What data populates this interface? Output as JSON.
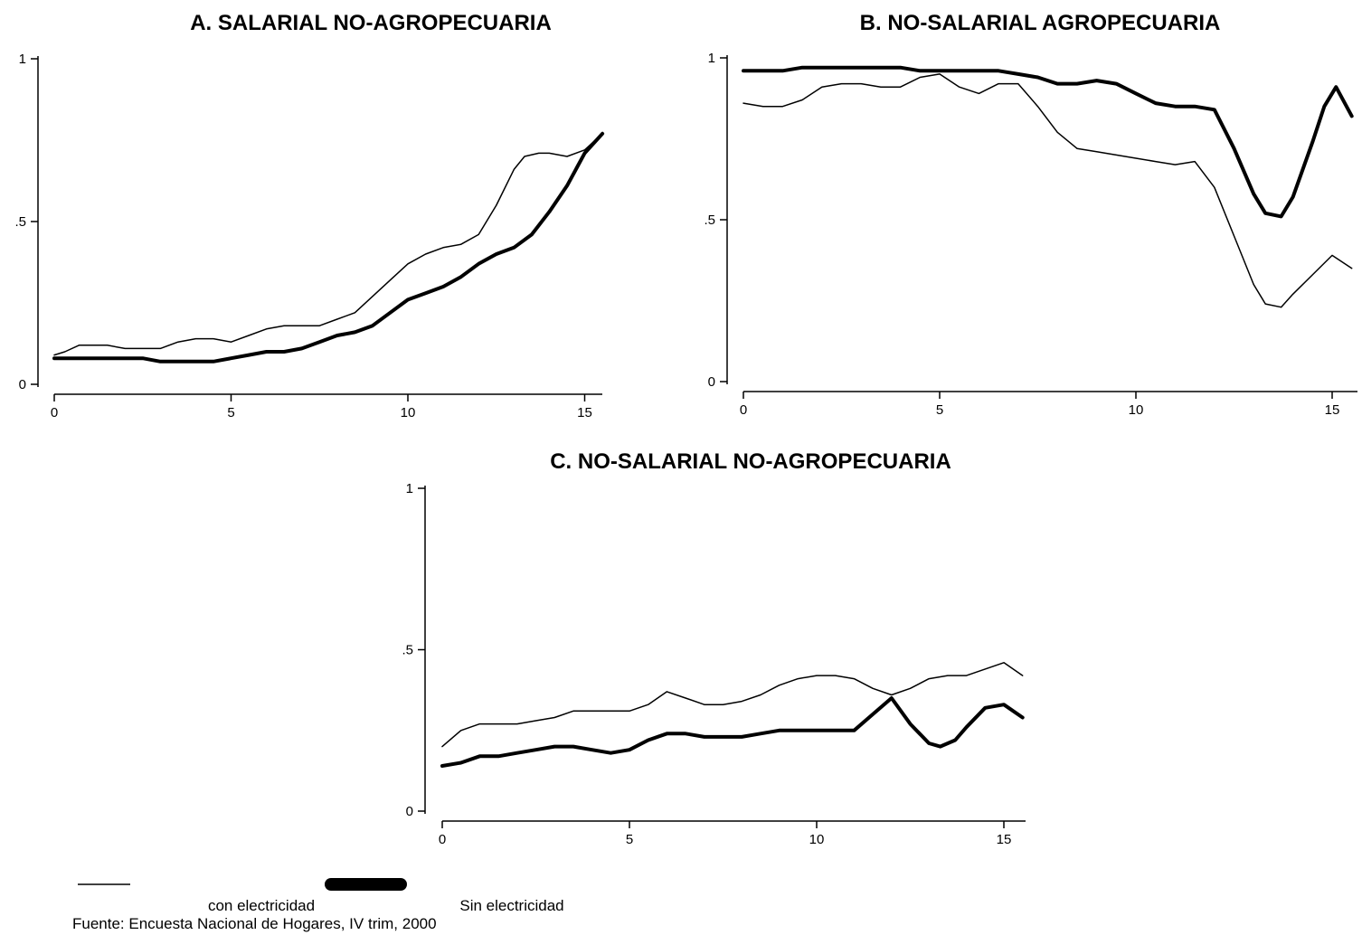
{
  "chart_data": [
    {
      "type": "line",
      "title": "A. SALARIAL NO-AGROPECUARIA",
      "xlabel": "",
      "ylabel": "",
      "xlim": [
        0,
        15.5
      ],
      "ylim": [
        0,
        1
      ],
      "x_ticks": [
        "0",
        "5",
        "10",
        "15"
      ],
      "y_ticks": [
        "0",
        ".5",
        "1"
      ],
      "series": [
        {
          "key": "con",
          "x": [
            0,
            0.3,
            0.7,
            1,
            1.5,
            2,
            2.5,
            3,
            3.5,
            4,
            4.5,
            5,
            5.5,
            6,
            6.5,
            7,
            7.5,
            8,
            8.5,
            9,
            9.5,
            10,
            10.5,
            11,
            11.5,
            12,
            12.5,
            13,
            13.3,
            13.7,
            14,
            14.5,
            15,
            15.5
          ],
          "y": [
            0.09,
            0.1,
            0.12,
            0.12,
            0.12,
            0.11,
            0.11,
            0.11,
            0.13,
            0.14,
            0.14,
            0.13,
            0.15,
            0.17,
            0.18,
            0.18,
            0.18,
            0.2,
            0.22,
            0.27,
            0.32,
            0.37,
            0.4,
            0.42,
            0.43,
            0.46,
            0.55,
            0.66,
            0.7,
            0.71,
            0.71,
            0.7,
            0.72,
            0.77
          ]
        },
        {
          "key": "sin",
          "x": [
            0,
            0.5,
            1,
            1.5,
            2,
            2.5,
            3,
            3.5,
            4,
            4.5,
            5,
            5.5,
            6,
            6.5,
            7,
            7.5,
            8,
            8.5,
            9,
            9.5,
            10,
            10.5,
            11,
            11.5,
            12,
            12.5,
            13,
            13.5,
            14,
            14.5,
            15,
            15.5
          ],
          "y": [
            0.08,
            0.08,
            0.08,
            0.08,
            0.08,
            0.08,
            0.07,
            0.07,
            0.07,
            0.07,
            0.08,
            0.09,
            0.1,
            0.1,
            0.11,
            0.13,
            0.15,
            0.16,
            0.18,
            0.22,
            0.26,
            0.28,
            0.3,
            0.33,
            0.37,
            0.4,
            0.42,
            0.46,
            0.53,
            0.61,
            0.71,
            0.77
          ]
        }
      ]
    },
    {
      "type": "line",
      "title": "B. NO-SALARIAL AGROPECUARIA",
      "xlabel": "",
      "ylabel": "",
      "xlim": [
        0,
        15.5
      ],
      "ylim": [
        0,
        1
      ],
      "x_ticks": [
        "0",
        "5",
        "10",
        "15"
      ],
      "y_ticks": [
        "0",
        ".5",
        "1"
      ],
      "series": [
        {
          "key": "con",
          "x": [
            0,
            0.5,
            1,
            1.5,
            2,
            2.5,
            3,
            3.5,
            4,
            4.5,
            5,
            5.5,
            6,
            6.5,
            7,
            7.5,
            8,
            8.5,
            9,
            9.5,
            10,
            10.5,
            11,
            11.5,
            12,
            12.5,
            13,
            13.3,
            13.7,
            14,
            14.5,
            15,
            15.5
          ],
          "y": [
            0.86,
            0.85,
            0.85,
            0.87,
            0.91,
            0.92,
            0.92,
            0.91,
            0.91,
            0.94,
            0.95,
            0.91,
            0.89,
            0.92,
            0.92,
            0.85,
            0.77,
            0.72,
            0.71,
            0.7,
            0.69,
            0.68,
            0.67,
            0.68,
            0.6,
            0.45,
            0.3,
            0.24,
            0.23,
            0.27,
            0.33,
            0.39,
            0.35
          ]
        },
        {
          "key": "sin",
          "x": [
            0,
            0.5,
            1,
            1.5,
            2,
            2.5,
            3,
            3.5,
            4,
            4.5,
            5,
            5.5,
            6,
            6.5,
            7,
            7.5,
            8,
            8.5,
            9,
            9.5,
            10,
            10.5,
            11,
            11.5,
            12,
            12.5,
            13,
            13.3,
            13.7,
            14,
            14.5,
            14.8,
            15.1,
            15.5
          ],
          "y": [
            0.96,
            0.96,
            0.96,
            0.97,
            0.97,
            0.97,
            0.97,
            0.97,
            0.97,
            0.96,
            0.96,
            0.96,
            0.96,
            0.96,
            0.95,
            0.94,
            0.92,
            0.92,
            0.93,
            0.92,
            0.89,
            0.86,
            0.85,
            0.85,
            0.84,
            0.72,
            0.58,
            0.52,
            0.51,
            0.57,
            0.74,
            0.85,
            0.91,
            0.82
          ]
        }
      ]
    },
    {
      "type": "line",
      "title": "C. NO-SALARIAL NO-AGROPECUARIA",
      "xlabel": "",
      "ylabel": "",
      "xlim": [
        0,
        15.5
      ],
      "ylim": [
        0,
        1
      ],
      "x_ticks": [
        "0",
        "5",
        "10",
        "15"
      ],
      "y_ticks": [
        "0",
        ".5",
        "1"
      ],
      "series": [
        {
          "key": "con",
          "x": [
            0,
            0.5,
            1,
            1.5,
            2,
            2.5,
            3,
            3.5,
            4,
            4.5,
            5,
            5.5,
            6,
            6.5,
            7,
            7.5,
            8,
            8.5,
            9,
            9.5,
            10,
            10.5,
            11,
            11.5,
            12,
            12.5,
            13,
            13.5,
            14,
            14.5,
            15,
            15.5
          ],
          "y": [
            0.2,
            0.25,
            0.27,
            0.27,
            0.27,
            0.28,
            0.29,
            0.31,
            0.31,
            0.31,
            0.31,
            0.33,
            0.37,
            0.35,
            0.33,
            0.33,
            0.34,
            0.36,
            0.39,
            0.41,
            0.42,
            0.42,
            0.41,
            0.38,
            0.36,
            0.38,
            0.41,
            0.42,
            0.42,
            0.44,
            0.46,
            0.42
          ]
        },
        {
          "key": "sin",
          "x": [
            0,
            0.5,
            1,
            1.5,
            2,
            2.5,
            3,
            3.5,
            4,
            4.5,
            5,
            5.5,
            6,
            6.5,
            7,
            7.5,
            8,
            8.5,
            9,
            9.5,
            10,
            10.5,
            11,
            11.5,
            12,
            12.5,
            13,
            13.3,
            13.7,
            14,
            14.5,
            15,
            15.5
          ],
          "y": [
            0.14,
            0.15,
            0.17,
            0.17,
            0.18,
            0.19,
            0.2,
            0.2,
            0.19,
            0.18,
            0.19,
            0.22,
            0.24,
            0.24,
            0.23,
            0.23,
            0.23,
            0.24,
            0.25,
            0.25,
            0.25,
            0.25,
            0.25,
            0.3,
            0.35,
            0.27,
            0.21,
            0.2,
            0.22,
            0.26,
            0.32,
            0.33,
            0.29
          ]
        }
      ]
    }
  ],
  "legend": {
    "con_label": "con electricidad",
    "sin_label": "Sin electricidad"
  },
  "source_note": "Fuente: Encuesta Nacional de Hogares, IV trim, 2000"
}
